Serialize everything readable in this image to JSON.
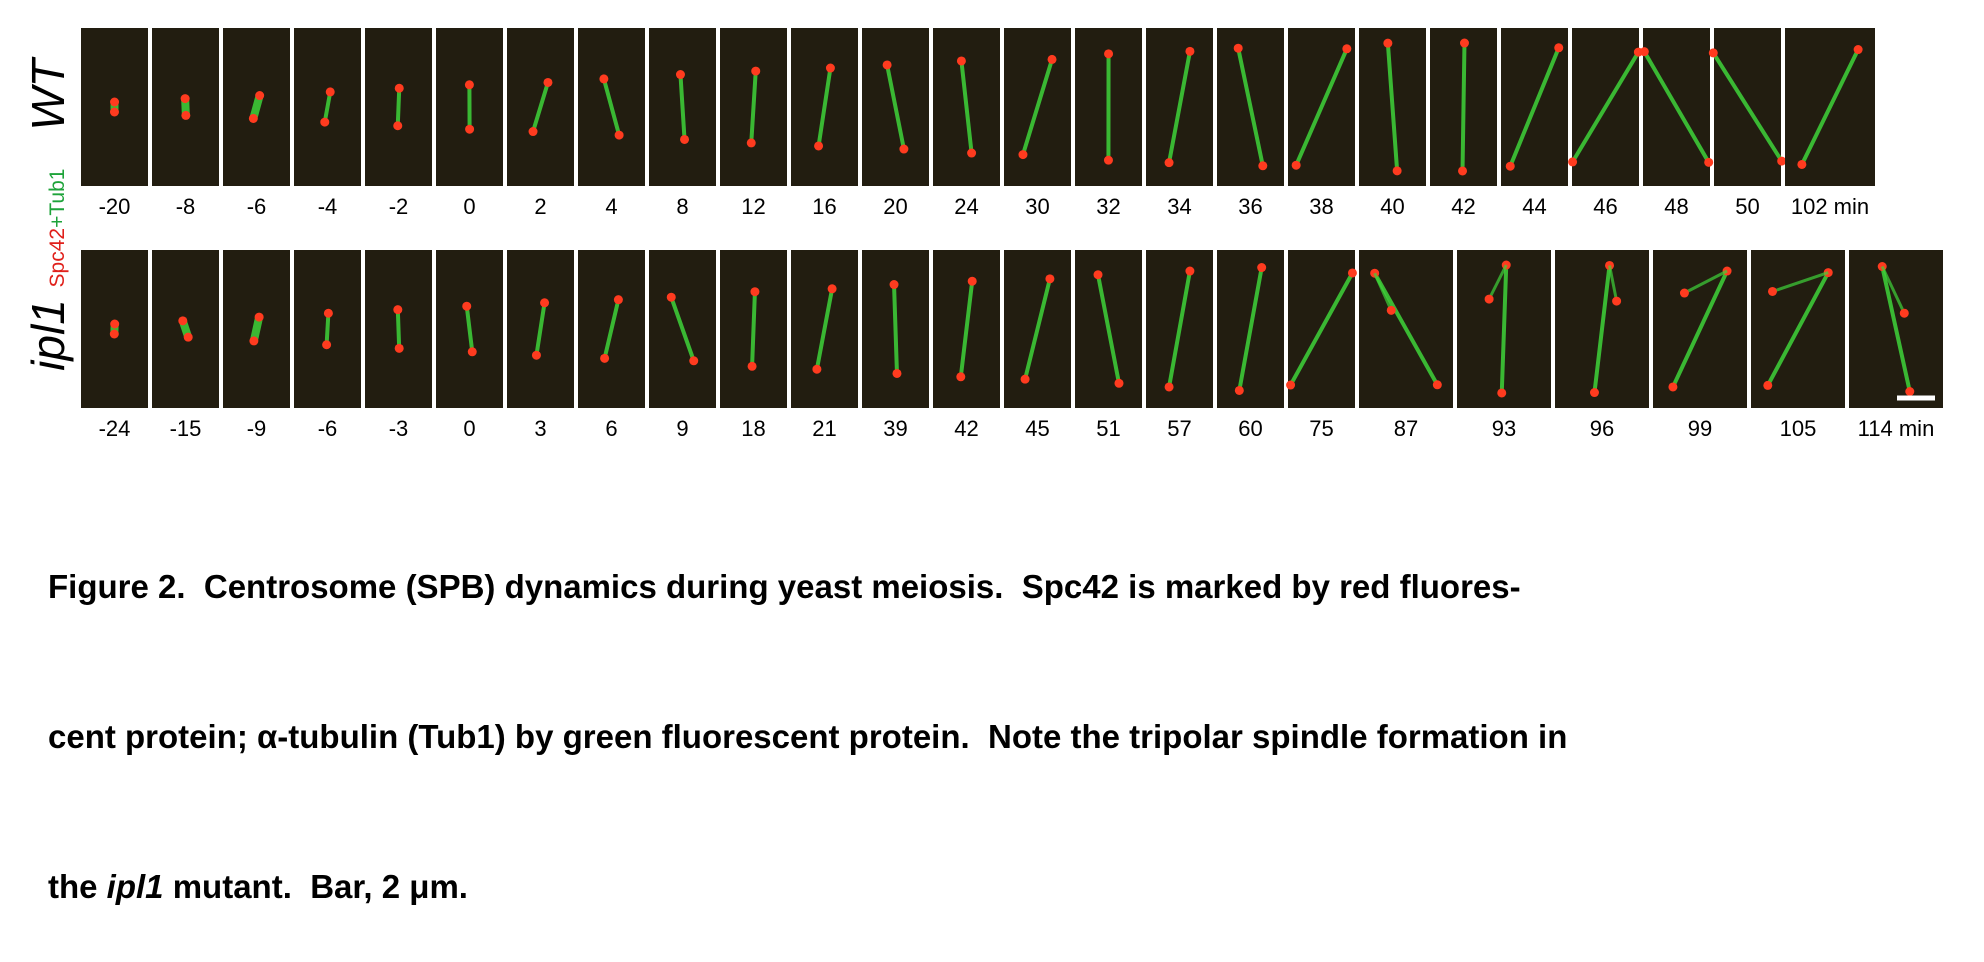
{
  "figure": {
    "rows": [
      {
        "label": "WT",
        "times": [
          "-20",
          "-8",
          "-6",
          "-4",
          "-2",
          "0",
          "2",
          "4",
          "8",
          "12",
          "16",
          "20",
          "24",
          "30",
          "32",
          "34",
          "36",
          "38",
          "40",
          "42",
          "44",
          "46",
          "48",
          "50",
          "102 min"
        ]
      },
      {
        "label": "ipl1",
        "times": [
          "-24",
          "-15",
          "-9",
          "-6",
          "-3",
          "0",
          "3",
          "6",
          "9",
          "18",
          "21",
          "39",
          "42",
          "45",
          "51",
          "57",
          "60",
          "75",
          "87",
          "93",
          "96",
          "99",
          "105",
          "114 min"
        ]
      }
    ],
    "channel_label": [
      "Spc42",
      "+Tub1"
    ],
    "caption": {
      "lines": [
        "Figure 2.  Centrosome (SPB) dynamics during yeast meiosis.  Spc42 is marked by red fluores-",
        "cent protein; α-tubulin (Tub1) by green fluorescent protein.  Note the tripolar spindle formation in"
      ],
      "last_line": [
        "the ",
        "ipl1",
        " mutant.  Bar, 2 μm."
      ]
    }
  }
}
